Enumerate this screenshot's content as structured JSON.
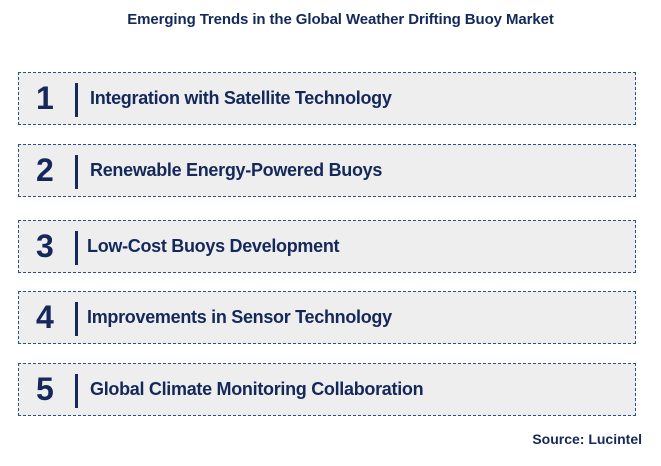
{
  "title": "Emerging Trends in the Global Weather Drifting Buoy Market",
  "trends": [
    {
      "number": "1",
      "label": "Integration with Satellite Technology"
    },
    {
      "number": "2",
      "label": "Renewable Energy-Powered Buoys"
    },
    {
      "number": "3",
      "label": "Low-Cost Buoys Development"
    },
    {
      "number": "4",
      "label": "Improvements in Sensor Technology"
    },
    {
      "number": "5",
      "label": "Global Climate Monitoring Collaboration"
    }
  ],
  "source": "Source: Lucintel"
}
